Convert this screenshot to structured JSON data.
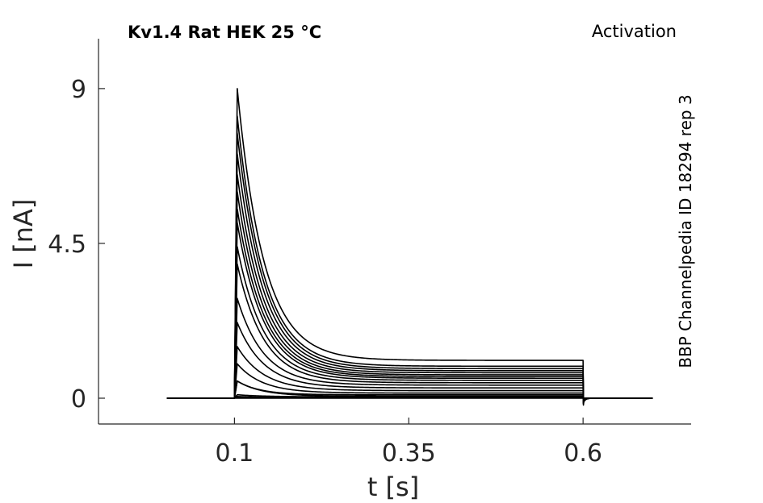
{
  "chart_data": {
    "type": "line",
    "title": "Kv1.4  Rat  HEK  25 °C",
    "protocol_label": "Activation",
    "side_note": "BBP Channelpedia ID 18294 rep 3",
    "xlabel": "t [s]",
    "ylabel": "I [nA]",
    "xlim": [
      -0.095,
      0.755
    ],
    "ylim": [
      -0.75,
      10.45
    ],
    "x_ticks": [
      0.1,
      0.35,
      0.6
    ],
    "x_tick_labels": [
      "0.1",
      "0.35",
      "0.6"
    ],
    "y_ticks": [
      0,
      4.5,
      9
    ],
    "y_tick_labels": [
      "0",
      "4.5",
      "9"
    ],
    "grid": false,
    "legend": "none",
    "trace_color": "#000000",
    "trace_model": {
      "baseline_start": 0.003,
      "step_on": 0.1,
      "step_off": 0.6,
      "record_end": 0.7,
      "peak_time": 0.104
    },
    "series": [
      {
        "peak": 0.0,
        "steady": 0.0,
        "tau": 0.04
      },
      {
        "peak": 0.02,
        "steady": 0.01,
        "tau": 0.04
      },
      {
        "peak": 0.05,
        "steady": 0.02,
        "tau": 0.04
      },
      {
        "peak": 0.1,
        "steady": 0.04,
        "tau": 0.04
      },
      {
        "peak": 0.5,
        "steady": 0.06,
        "tau": 0.035
      },
      {
        "peak": 0.5,
        "steady": 0.1,
        "tau": 0.032
      },
      {
        "peak": 1.0,
        "steady": 0.15,
        "tau": 0.036
      },
      {
        "peak": 1.5,
        "steady": 0.22,
        "tau": 0.038
      },
      {
        "peak": 2.2,
        "steady": 0.3,
        "tau": 0.038
      },
      {
        "peak": 2.9,
        "steady": 0.38,
        "tau": 0.038
      },
      {
        "peak": 3.9,
        "steady": 0.45,
        "tau": 0.038
      },
      {
        "peak": 4.4,
        "steady": 0.52,
        "tau": 0.038
      },
      {
        "peak": 5.1,
        "steady": 0.58,
        "tau": 0.038
      },
      {
        "peak": 5.5,
        "steady": 0.63,
        "tau": 0.038
      },
      {
        "peak": 6.0,
        "steady": 0.68,
        "tau": 0.038
      },
      {
        "peak": 6.5,
        "steady": 0.74,
        "tau": 0.038
      },
      {
        "peak": 7.1,
        "steady": 0.8,
        "tau": 0.038
      },
      {
        "peak": 7.7,
        "steady": 0.86,
        "tau": 0.038
      },
      {
        "peak": 8.2,
        "steady": 0.93,
        "tau": 0.038
      },
      {
        "peak": 9.0,
        "steady": 1.1,
        "tau": 0.038
      }
    ]
  }
}
